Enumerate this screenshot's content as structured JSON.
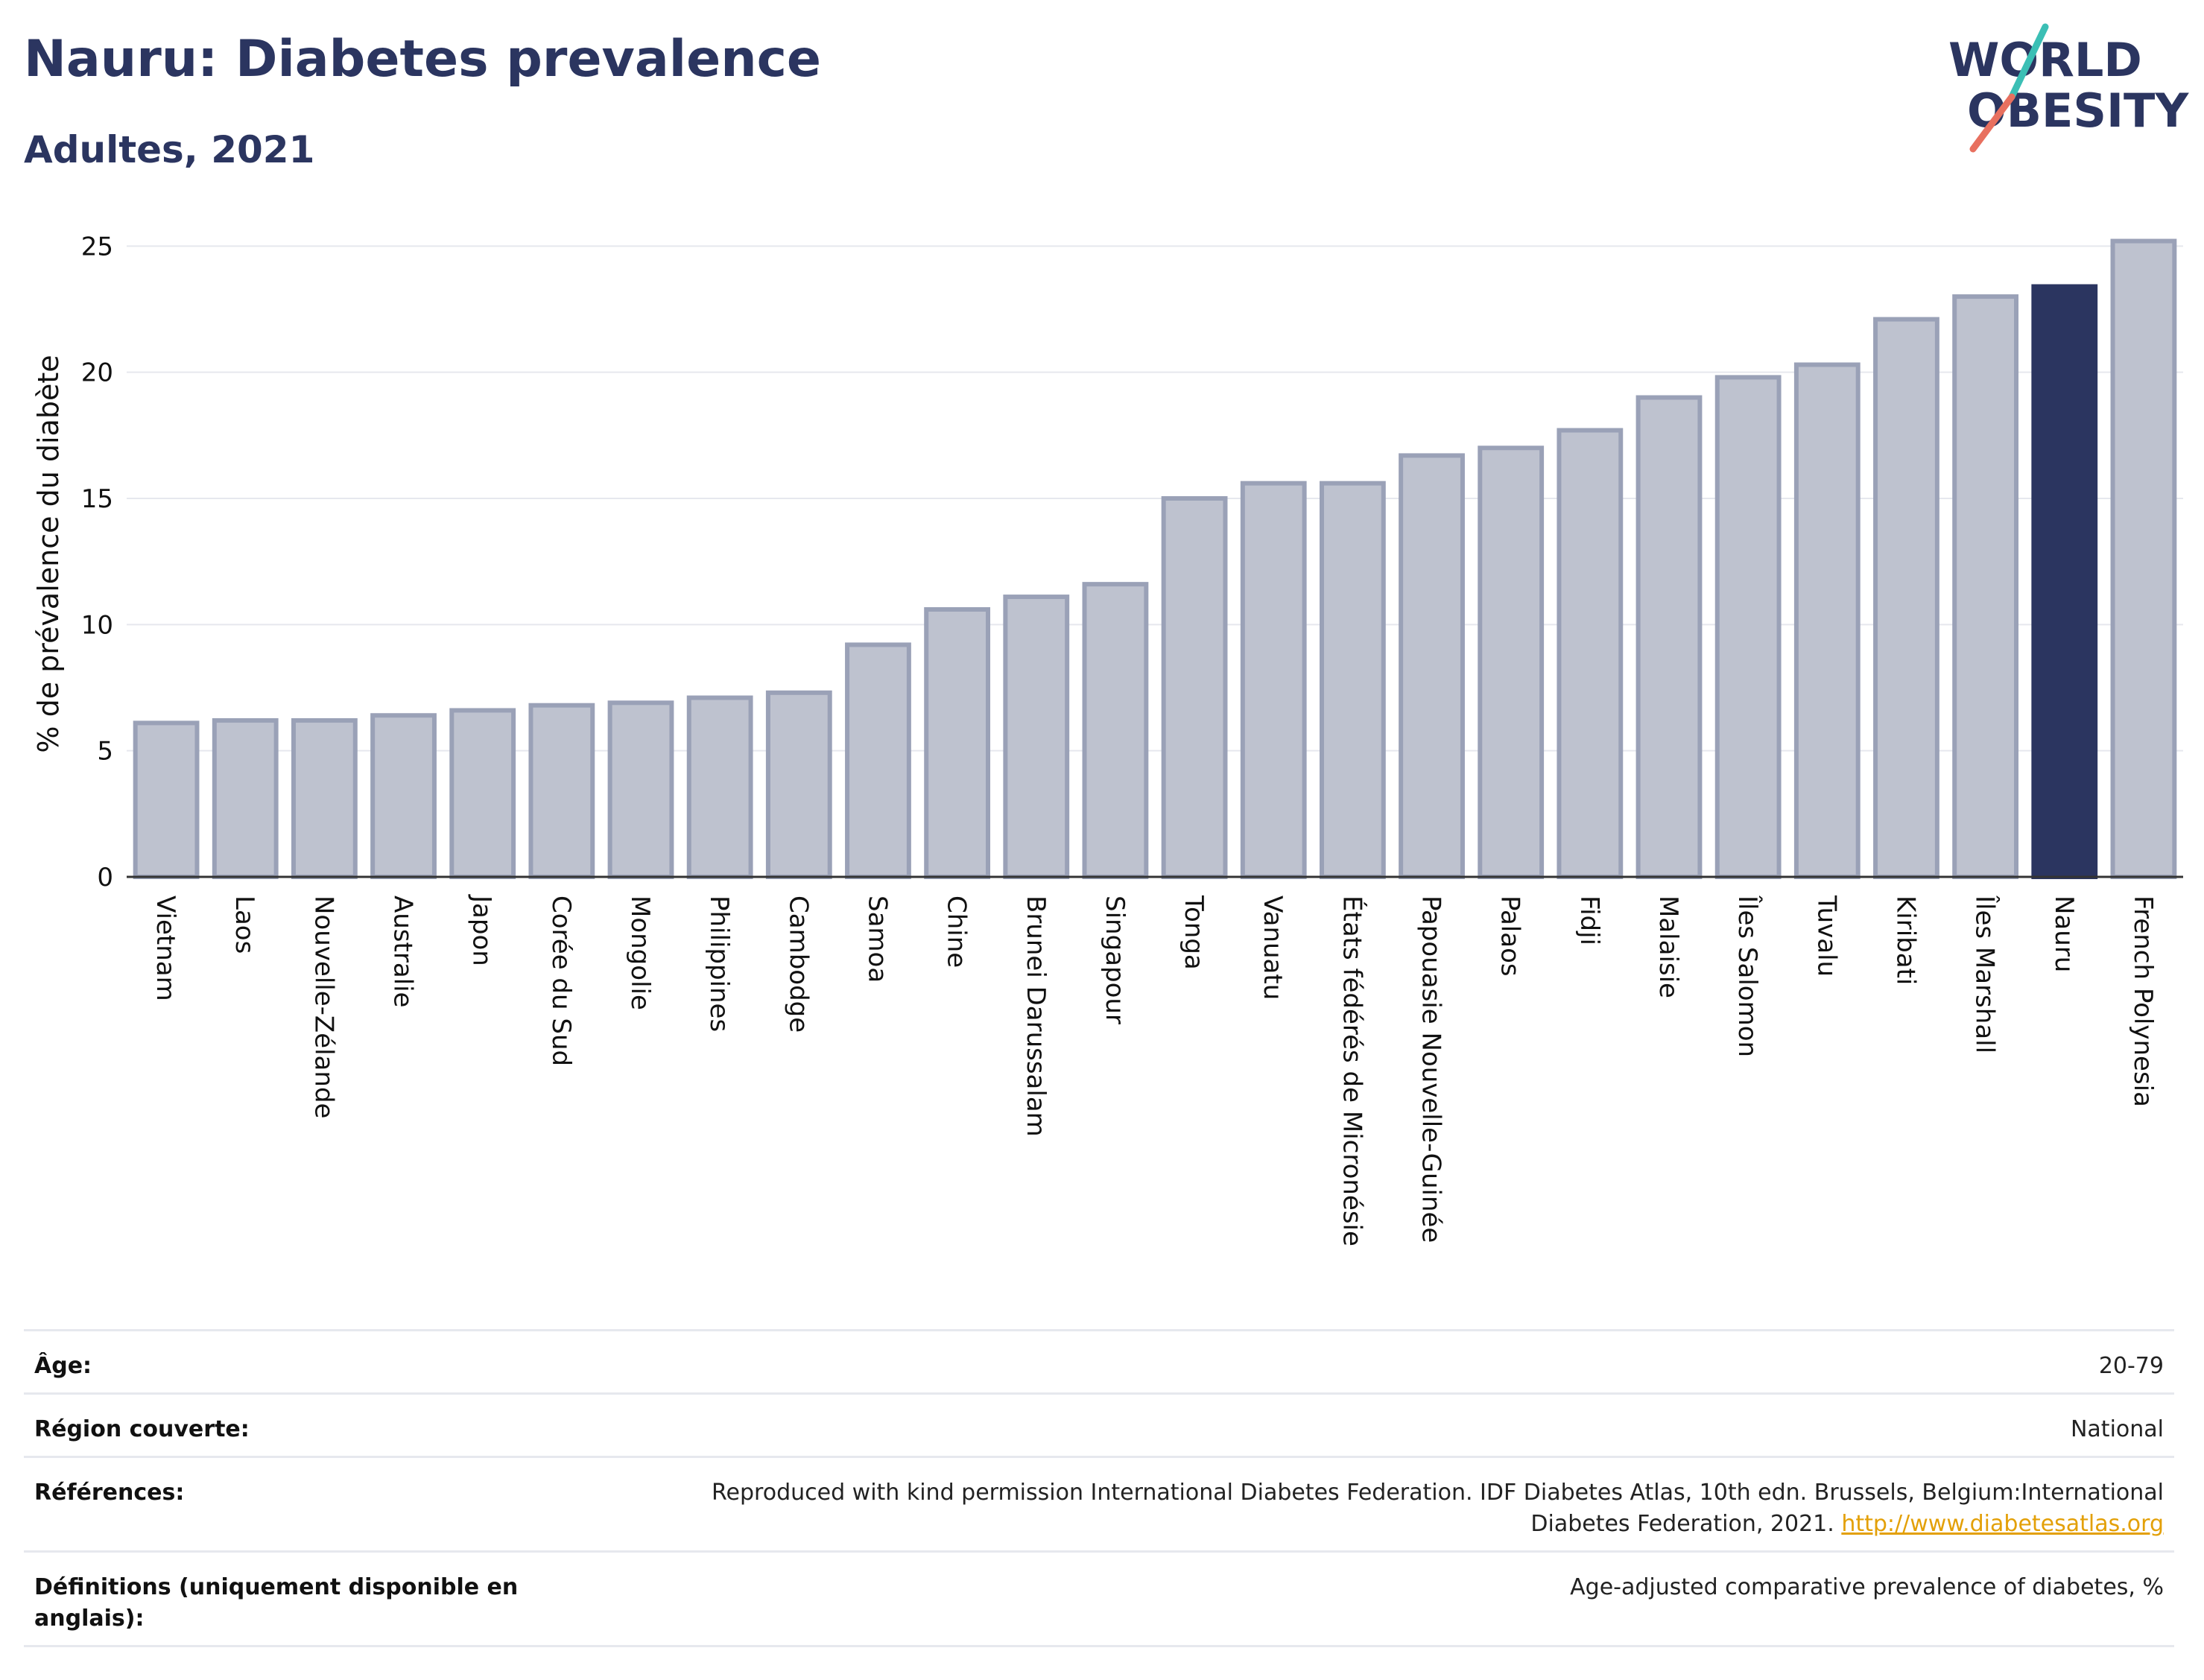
{
  "header": {
    "title": "Nauru: Diabetes prevalence",
    "subtitle": "Adultes, 2021"
  },
  "logo": {
    "line1": "WORLD",
    "line2": "OBESITY",
    "colors": {
      "text": "#2b3560",
      "slash_teal": "#3bbfb5",
      "slash_coral": "#e8705f"
    }
  },
  "colors": {
    "bar_default": "#bec2cf",
    "bar_default_stroke": "#9aa1b7",
    "bar_highlight": "#2b3560",
    "grid": "#e6e8ee"
  },
  "chart_data": {
    "type": "bar",
    "ylabel": "% de prévalence du diabète",
    "ylim": [
      0,
      25
    ],
    "yticks": [
      0,
      5,
      10,
      15,
      20,
      25
    ],
    "grid": true,
    "highlight": "Nauru",
    "categories": [
      "Vietnam",
      "Laos",
      "Nouvelle-Zélande",
      "Australie",
      "Japon",
      "Corée du Sud",
      "Mongolie",
      "Philippines",
      "Cambodge",
      "Samoa",
      "Chine",
      "Brunei Darussalam",
      "Singapour",
      "Tonga",
      "Vanuatu",
      "États fédérés de Micronésie",
      "Papouasie Nouvelle-Guinée",
      "Palaos",
      "Fidji",
      "Malaisie",
      "Îles Salomon",
      "Tuvalu",
      "Kiribati",
      "Îles Marshall",
      "Nauru",
      "French Polynesia"
    ],
    "values": [
      6.1,
      6.2,
      6.2,
      6.4,
      6.6,
      6.8,
      6.9,
      7.1,
      7.3,
      9.2,
      10.6,
      11.1,
      11.6,
      15.0,
      15.6,
      15.6,
      16.7,
      17.0,
      17.7,
      19.0,
      19.8,
      20.3,
      22.1,
      23.0,
      23.4,
      25.2
    ]
  },
  "meta": {
    "age_label": "Âge:",
    "age_value": "20-79",
    "region_label": "Région couverte:",
    "region_value": "National",
    "refs_label": "Références:",
    "refs_value": "Reproduced with kind permission International Diabetes Federation.  IDF Diabetes Atlas, 10th edn. Brussels, Belgium:International Diabetes Federation, 2021. ",
    "refs_link": "http://www.diabetesatlas.org",
    "defs_label": "Définitions (uniquement disponible en anglais):",
    "defs_value": "Age-adjusted comparative prevalence of diabetes, %"
  }
}
